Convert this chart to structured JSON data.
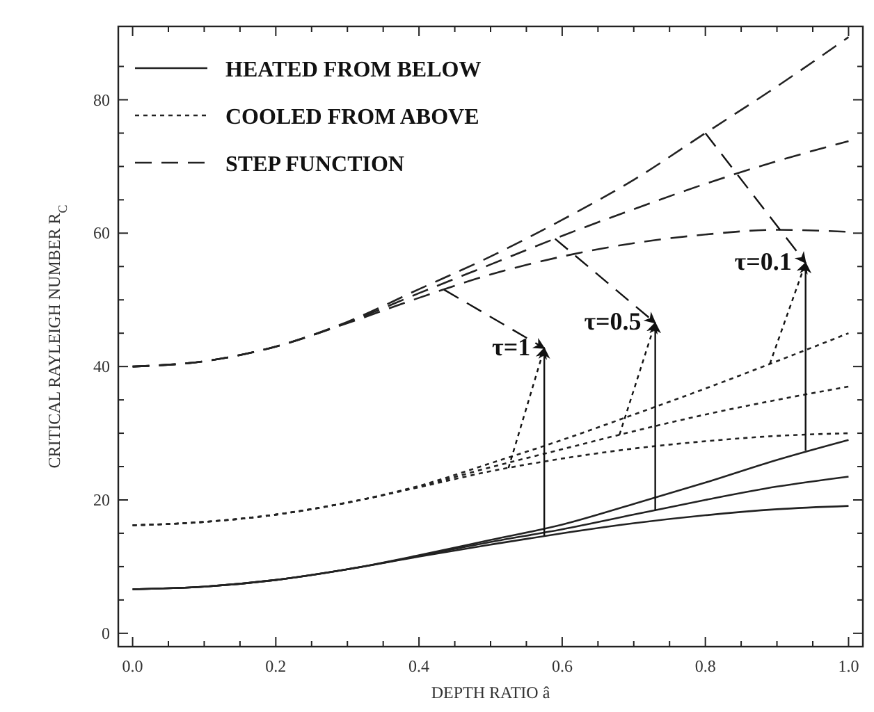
{
  "chart_data": {
    "type": "line",
    "xlabel": "DEPTH RATIO â",
    "ylabel": "CRITICAL RAYLEIGH NUMBER R$_{C}$",
    "x": [
      0,
      0.1,
      0.2,
      0.3,
      0.4,
      0.5,
      0.6,
      0.7,
      0.8,
      0.9,
      1.0
    ],
    "series": [
      {
        "name": "HEATED FROM BELOW",
        "color": "#222222",
        "line_style": "solid",
        "values": [
          6.6,
          7.0,
          8.0,
          9.6,
          11.5,
          13.3,
          15.0,
          16.5,
          17.7,
          18.6,
          19.1
        ]
      },
      {
        "color": "#222222",
        "line_style": "solid",
        "values": [
          6.6,
          7.0,
          8.0,
          9.6,
          11.6,
          13.7,
          15.6,
          17.8,
          20.0,
          22.0,
          23.5
        ]
      },
      {
        "color": "#222222",
        "line_style": "solid",
        "values": [
          6.6,
          7.0,
          8.0,
          9.6,
          11.7,
          14.0,
          16.3,
          19.4,
          22.6,
          26.0,
          29.0
        ]
      },
      {
        "name": "COOLED FROM ABOVE",
        "color": "#222222",
        "line_style": "dotted",
        "values": [
          16.2,
          16.7,
          17.8,
          19.6,
          21.9,
          24.3,
          26.2,
          27.7,
          28.8,
          29.6,
          30.0
        ]
      },
      {
        "color": "#222222",
        "line_style": "dotted",
        "values": [
          16.2,
          16.7,
          17.8,
          19.6,
          22.0,
          24.9,
          27.6,
          30.3,
          32.8,
          35.0,
          37.0
        ]
      },
      {
        "color": "#222222",
        "line_style": "dotted",
        "values": [
          16.2,
          16.7,
          17.8,
          19.6,
          22.1,
          25.5,
          29.0,
          32.8,
          36.7,
          40.8,
          45.0
        ]
      },
      {
        "name": "STEP FUNCTION",
        "color": "#222222",
        "line_style": "dashed",
        "values": [
          40.0,
          40.8,
          43.0,
          46.5,
          50.3,
          53.8,
          56.5,
          58.5,
          59.8,
          60.5,
          60.2
        ]
      },
      {
        "color": "#222222",
        "line_style": "dashed",
        "values": [
          40.0,
          40.8,
          43.0,
          46.6,
          51.0,
          55.3,
          59.6,
          63.6,
          67.4,
          70.8,
          73.8
        ]
      },
      {
        "color": "#222222",
        "line_style": "dashed",
        "values": [
          40.0,
          40.8,
          43.0,
          46.7,
          51.6,
          56.5,
          62.0,
          68.0,
          75.0,
          82.0,
          89.4
        ]
      }
    ],
    "annotations": [
      {
        "text": "τ=1",
        "x": 0.575,
        "y": 14.6
      },
      {
        "text": "τ=0.5",
        "x": 0.73,
        "y": 18.4
      },
      {
        "text": "τ=0.1",
        "x": 0.94,
        "y": 27.4
      }
    ],
    "xlim": [
      -0.02,
      1.02
    ],
    "ylim": [
      -2,
      91
    ],
    "xticks": [
      {
        "value": 0,
        "label": "0.0"
      },
      {
        "value": 0.05,
        "label": null
      },
      {
        "value": 0.1,
        "label": null
      },
      {
        "value": 0.15,
        "label": null
      },
      {
        "value": 0.2,
        "label": "0.2"
      },
      {
        "value": 0.25,
        "label": null
      },
      {
        "value": 0.3,
        "label": null
      },
      {
        "value": 0.35,
        "label": null
      },
      {
        "value": 0.4,
        "label": "0.4"
      },
      {
        "value": 0.45,
        "label": null
      },
      {
        "value": 0.5,
        "label": null
      },
      {
        "value": 0.55,
        "label": null
      },
      {
        "value": 0.6,
        "label": "0.6"
      },
      {
        "value": 0.65,
        "label": null
      },
      {
        "value": 0.7,
        "label": null
      },
      {
        "value": 0.75,
        "label": null
      },
      {
        "value": 0.8,
        "label": "0.8"
      },
      {
        "value": 0.85,
        "label": null
      },
      {
        "value": 0.9,
        "label": null
      },
      {
        "value": 0.95,
        "label": null
      },
      {
        "value": 1.0,
        "label": "1.0"
      }
    ],
    "yticks": [
      0,
      {
        "value": 5,
        "label": null
      },
      {
        "value": 10,
        "label": null
      },
      {
        "value": 15,
        "label": null
      },
      20,
      {
        "value": 25,
        "label": null
      },
      {
        "value": 30,
        "label": null
      },
      {
        "value": 35,
        "label": null
      },
      40,
      {
        "value": 45,
        "label": null
      },
      {
        "value": 50,
        "label": null
      },
      {
        "value": 55,
        "label": null
      },
      60,
      {
        "value": 65,
        "label": null
      },
      {
        "value": 70,
        "label": null
      },
      {
        "value": 75,
        "label": null
      },
      80,
      {
        "value": 85,
        "label": null
      }
    ],
    "legend": "top left",
    "grid": false,
    "marker": "none"
  }
}
